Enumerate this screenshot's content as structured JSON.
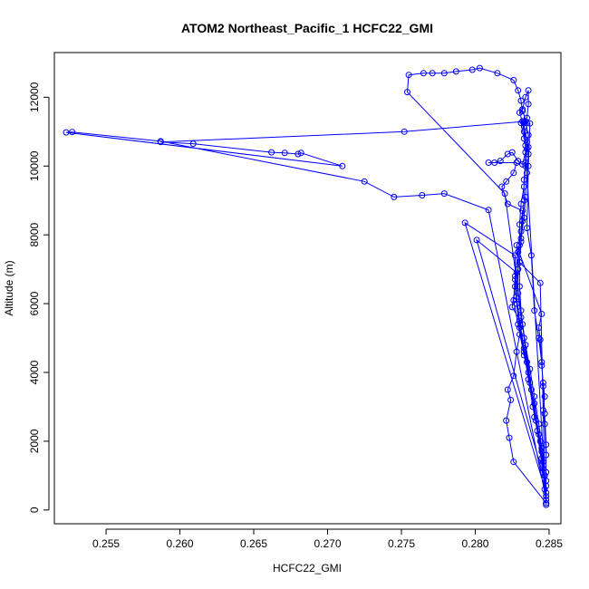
{
  "chart_data": {
    "type": "line",
    "title": "ATOM2 Northeast_Pacific_1 HCFC22_GMI",
    "xlabel": "HCFC22_GMI",
    "ylabel": "Altitude (m)",
    "xlim": [
      0.2515,
      0.2858
    ],
    "ylim": [
      -400,
      13300
    ],
    "xticks": [
      0.255,
      0.26,
      0.265,
      0.27,
      0.275,
      0.28,
      0.285
    ],
    "xtick_labels": [
      "0.255",
      "0.260",
      "0.265",
      "0.270",
      "0.275",
      "0.280",
      "0.285"
    ],
    "yticks": [
      0,
      2000,
      4000,
      6000,
      8000,
      10000,
      12000
    ],
    "ytick_labels": [
      "0",
      "2000",
      "4000",
      "6000",
      "8000",
      "10000",
      "12000"
    ],
    "grid": false,
    "legend": "none",
    "series_color": "#0000ff",
    "series": [
      {
        "marker": "open-circle",
        "points": [
          [
            0.2848,
            200
          ],
          [
            0.2847,
            600
          ],
          [
            0.2846,
            1200
          ],
          [
            0.2844,
            2000
          ],
          [
            0.284,
            2700
          ],
          [
            0.2838,
            3500
          ],
          [
            0.2835,
            4300
          ],
          [
            0.2833,
            5000
          ],
          [
            0.2831,
            5800
          ],
          [
            0.283,
            6500
          ],
          [
            0.283,
            7200
          ],
          [
            0.2831,
            7800
          ],
          [
            0.2832,
            8400
          ],
          [
            0.2833,
            9000
          ],
          [
            0.2833,
            9600
          ],
          [
            0.2834,
            10100
          ],
          [
            0.2834,
            10600
          ],
          [
            0.2833,
            11000
          ],
          [
            0.2832,
            11300
          ],
          [
            0.2835,
            11250
          ],
          [
            0.2832,
            11600
          ],
          [
            0.2831,
            11900
          ],
          [
            0.2829,
            12200
          ],
          [
            0.2826,
            12500
          ],
          [
            0.2815,
            12700
          ],
          [
            0.2803,
            12850
          ],
          [
            0.2798,
            12800
          ],
          [
            0.2787,
            12750
          ],
          [
            0.2779,
            12700
          ],
          [
            0.2771,
            12700
          ],
          [
            0.2765,
            12700
          ],
          [
            0.2755,
            12650
          ],
          [
            0.2754,
            12150
          ],
          [
            0.282,
            9200
          ],
          [
            0.2848,
            400
          ],
          [
            0.2847,
            1000
          ],
          [
            0.2845,
            1800
          ],
          [
            0.2843,
            2500
          ],
          [
            0.284,
            3300
          ],
          [
            0.2837,
            4100
          ],
          [
            0.2834,
            4800
          ],
          [
            0.2831,
            5600
          ],
          [
            0.2829,
            6300
          ],
          [
            0.2829,
            7000
          ],
          [
            0.283,
            7700
          ],
          [
            0.283,
            8300
          ],
          [
            0.2831,
            8900
          ],
          [
            0.2833,
            9400
          ],
          [
            0.2834,
            10000
          ],
          [
            0.2835,
            10500
          ],
          [
            0.2836,
            10900
          ],
          [
            0.2834,
            11300
          ],
          [
            0.2752,
            11000
          ],
          [
            0.2587,
            10700
          ],
          [
            0.2609,
            10650
          ],
          [
            0.2662,
            10400
          ],
          [
            0.2671,
            10380
          ],
          [
            0.268,
            10350
          ],
          [
            0.2682,
            10380
          ],
          [
            0.271,
            10000
          ],
          [
            0.2523,
            10980
          ],
          [
            0.2527,
            10990
          ],
          [
            0.2587,
            10720
          ],
          [
            0.2725,
            9550
          ],
          [
            0.2745,
            9100
          ],
          [
            0.2764,
            9150
          ],
          [
            0.2779,
            9200
          ],
          [
            0.2809,
            8720
          ],
          [
            0.2848,
            300
          ],
          [
            0.2845,
            1500
          ],
          [
            0.2842,
            2300
          ],
          [
            0.2839,
            3000
          ],
          [
            0.2836,
            3800
          ],
          [
            0.2833,
            4600
          ],
          [
            0.283,
            5300
          ],
          [
            0.2828,
            6000
          ],
          [
            0.2827,
            6700
          ],
          [
            0.2827,
            7400
          ],
          [
            0.2793,
            8350
          ],
          [
            0.2848,
            500
          ],
          [
            0.2846,
            1400
          ],
          [
            0.2843,
            2200
          ],
          [
            0.284,
            3100
          ],
          [
            0.2836,
            4000
          ],
          [
            0.2833,
            4700
          ],
          [
            0.283,
            5500
          ],
          [
            0.2828,
            6200
          ],
          [
            0.2828,
            6900
          ],
          [
            0.2801,
            7850
          ],
          [
            0.2848,
            700
          ],
          [
            0.2845,
            1700
          ],
          [
            0.2841,
            2600
          ],
          [
            0.2837,
            3700
          ],
          [
            0.2833,
            4500
          ],
          [
            0.2829,
            5400
          ],
          [
            0.2826,
            6100
          ],
          [
            0.2827,
            6800
          ],
          [
            0.2829,
            7500
          ],
          [
            0.2831,
            8100
          ],
          [
            0.2832,
            8700
          ],
          [
            0.2822,
            8900
          ],
          [
            0.2818,
            9400
          ],
          [
            0.2821,
            9550
          ],
          [
            0.2826,
            9800
          ],
          [
            0.2828,
            10100
          ],
          [
            0.2809,
            10100
          ],
          [
            0.2813,
            10100
          ],
          [
            0.2817,
            10150
          ],
          [
            0.2822,
            10350
          ],
          [
            0.2825,
            10400
          ],
          [
            0.2829,
            10150
          ],
          [
            0.2832,
            10050
          ],
          [
            0.2834,
            10400
          ],
          [
            0.2836,
            10550
          ],
          [
            0.2833,
            10800
          ],
          [
            0.2831,
            11250
          ],
          [
            0.2833,
            11300
          ],
          [
            0.2835,
            11400
          ],
          [
            0.2836,
            11800
          ],
          [
            0.2836,
            12200
          ],
          [
            0.2834,
            12000
          ],
          [
            0.2832,
            11650
          ],
          [
            0.283,
            11550
          ],
          [
            0.2833,
            11150
          ],
          [
            0.2835,
            10700
          ],
          [
            0.2836,
            10350
          ],
          [
            0.2835,
            9800
          ],
          [
            0.2834,
            9100
          ],
          [
            0.2833,
            8500
          ],
          [
            0.2831,
            7900
          ],
          [
            0.283,
            7200
          ],
          [
            0.2844,
            6600
          ],
          [
            0.2847,
            1000
          ],
          [
            0.2848,
            150
          ],
          [
            0.2833,
            11250
          ],
          [
            0.2837,
            11240
          ],
          [
            0.2836,
            10000
          ],
          [
            0.2835,
            8200
          ],
          [
            0.2838,
            7400
          ],
          [
            0.284,
            5800
          ],
          [
            0.2843,
            5000
          ],
          [
            0.2845,
            4300
          ],
          [
            0.2846,
            3600
          ],
          [
            0.2847,
            2800
          ],
          [
            0.2848,
            1900
          ],
          [
            0.2848,
            1100
          ],
          [
            0.2848,
            200
          ],
          [
            0.2826,
            1400
          ],
          [
            0.2823,
            2100
          ],
          [
            0.2821,
            2600
          ],
          [
            0.2824,
            3200
          ],
          [
            0.2822,
            3500
          ],
          [
            0.2826,
            3900
          ],
          [
            0.2828,
            4600
          ],
          [
            0.283,
            5100
          ],
          [
            0.2832,
            5400
          ],
          [
            0.2825,
            5900
          ],
          [
            0.2827,
            6500
          ],
          [
            0.2829,
            7000
          ],
          [
            0.2828,
            7700
          ],
          [
            0.2845,
            5700
          ],
          [
            0.2843,
            5300
          ],
          [
            0.2844,
            4950
          ],
          [
            0.2845,
            4200
          ],
          [
            0.2846,
            3700
          ],
          [
            0.2847,
            3300
          ],
          [
            0.2846,
            2900
          ],
          [
            0.2847,
            2500
          ],
          [
            0.2848,
            1600
          ],
          [
            0.2848,
            850
          ]
        ]
      }
    ]
  }
}
